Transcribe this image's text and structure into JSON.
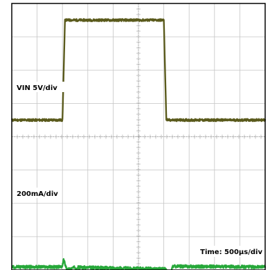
{
  "chart_data": {
    "type": "line",
    "x_unit": "µs",
    "x_range": [
      0,
      5000
    ],
    "grid": true,
    "grid_divisions": {
      "x": 10,
      "y": 8
    },
    "annotations": {
      "vin": "VIN 5V/div",
      "current": "200mA/div",
      "time": "Time: 500µs/div"
    },
    "series": [
      {
        "color": "#5a5a1c",
        "points": [
          [
            0,
            0
          ],
          [
            1000,
            0
          ],
          [
            1050,
            3.0
          ],
          [
            3000,
            3.0
          ],
          [
            3050,
            0
          ],
          [
            5000,
            0
          ]
        ],
        "noise": 0.035
      },
      {
        "color": "#27a83a",
        "points": [
          [
            0,
            -0.06
          ],
          [
            1000,
            -0.06
          ],
          [
            1020,
            0.18
          ],
          [
            1090,
            -0.14
          ],
          [
            1250,
            -0.07
          ],
          [
            3030,
            -0.12
          ],
          [
            3080,
            -0.22
          ],
          [
            3130,
            -0.36
          ],
          [
            3170,
            -0.04
          ],
          [
            5000,
            -0.06
          ]
        ],
        "noise": 0.045
      }
    ]
  }
}
